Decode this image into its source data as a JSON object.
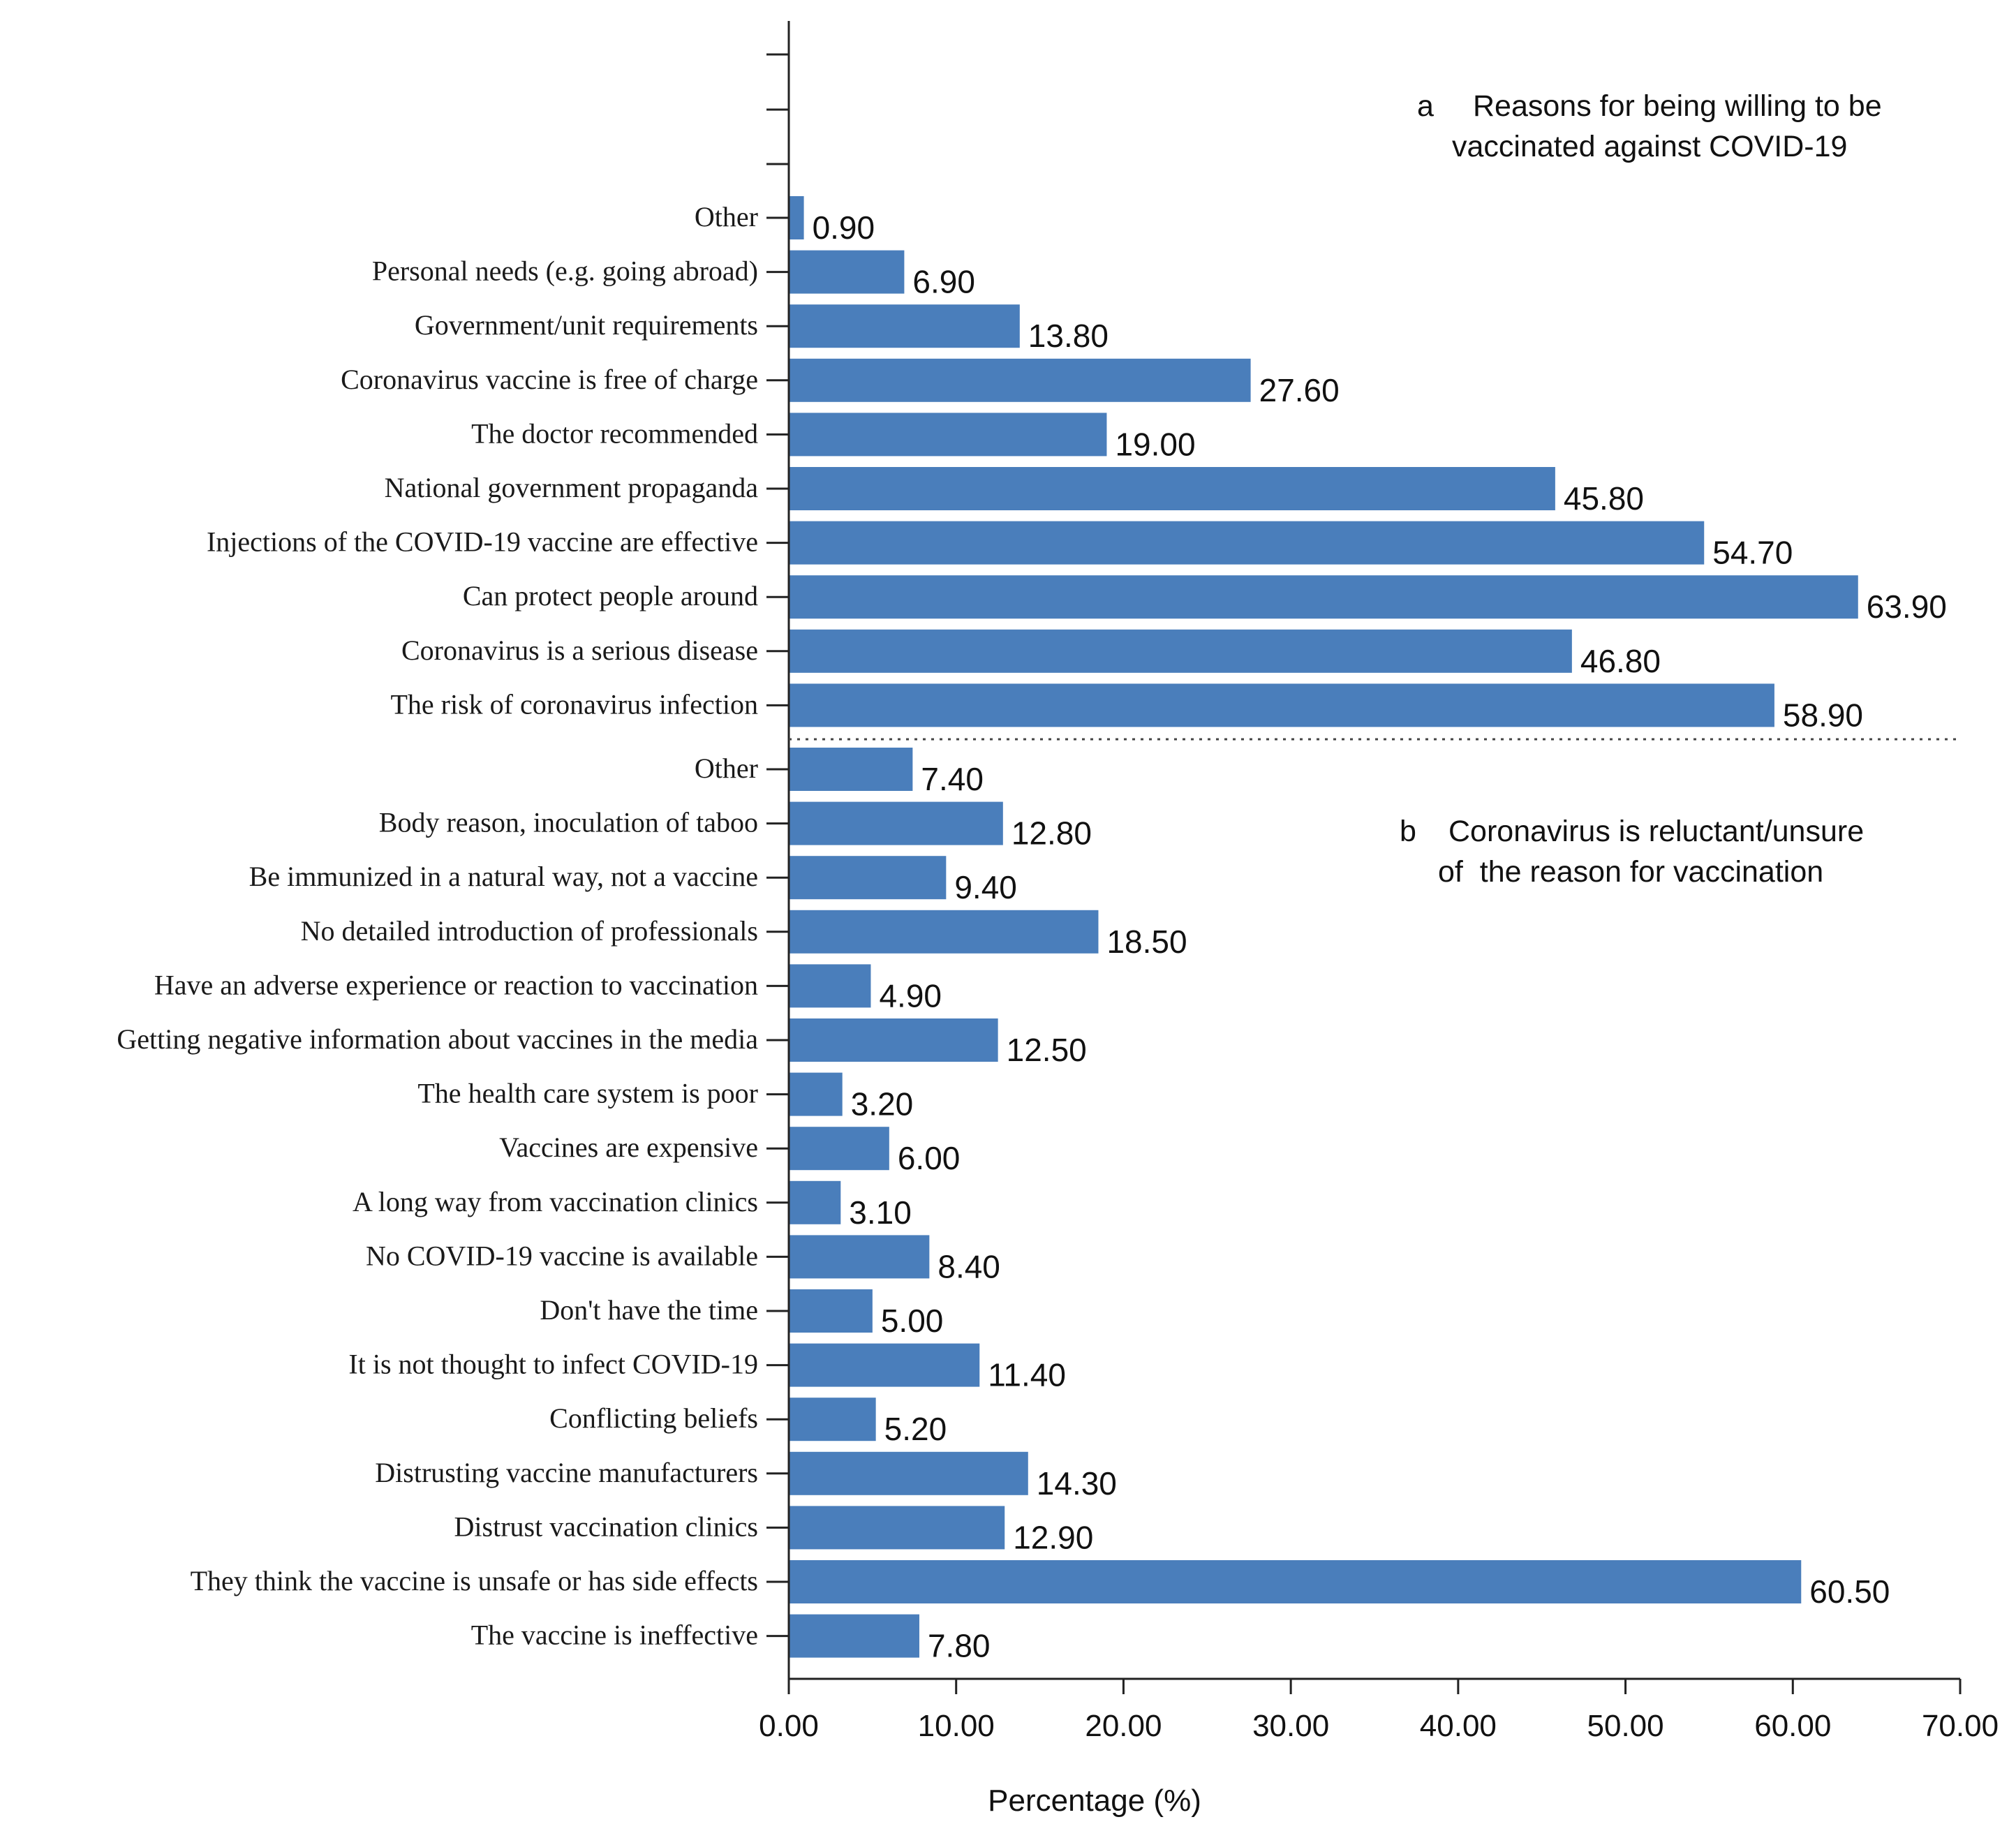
{
  "chart_data": {
    "type": "bar",
    "orientation": "horizontal",
    "bar_color": "#4a7ebb",
    "xlabel": "Percentage (%)",
    "xlim": [
      0,
      70
    ],
    "x_ticks": [
      "0.00",
      "10.00",
      "20.00",
      "30.00",
      "40.00",
      "50.00",
      "60.00",
      "70.00"
    ],
    "x_tick_values": [
      0,
      10,
      20,
      30,
      40,
      50,
      60,
      70
    ],
    "panels": [
      {
        "id": "a",
        "letter": "a",
        "title_lines": [
          "Reasons for being willing to be",
          "vaccinated against COVID-19"
        ],
        "categories": [
          "Other",
          "Personal needs (e.g. going abroad)",
          "Government/unit requirements",
          "Coronavirus vaccine is free of charge",
          "The doctor recommended",
          "National government propaganda",
          "Injections of the COVID-19 vaccine are effective",
          "Can protect people around",
          "Coronavirus is a serious disease",
          "The risk of coronavirus infection"
        ],
        "values": [
          0.9,
          6.9,
          13.8,
          27.6,
          19.0,
          45.8,
          54.7,
          63.9,
          46.8,
          58.9
        ],
        "value_labels": [
          "0.90",
          "6.90",
          "13.80",
          "27.60",
          "19.00",
          "45.80",
          "54.70",
          "63.90",
          "46.80",
          "58.90"
        ]
      },
      {
        "id": "b",
        "letter": "b",
        "title_lines": [
          "Coronavirus is reluctant/unsure",
          "of  the reason for vaccination"
        ],
        "categories": [
          "Other",
          "Body reason, inoculation of taboo",
          "Be immunized in a natural way, not a vaccine",
          "No detailed introduction of professionals",
          "Have an adverse experience or reaction to vaccination",
          "Getting negative information about vaccines in the media",
          "The health care system is poor",
          "Vaccines are expensive",
          "A long way from vaccination clinics",
          "No COVID-19 vaccine is available",
          "Don't have the time",
          "It is not thought to infect COVID-19",
          "Conflicting beliefs",
          "Distrusting vaccine manufacturers",
          "Distrust vaccination clinics",
          "They think the vaccine is unsafe or has side effects",
          "The vaccine is ineffective"
        ],
        "values": [
          7.4,
          12.8,
          9.4,
          18.5,
          4.9,
          12.5,
          3.2,
          6.0,
          3.1,
          8.4,
          5.0,
          11.4,
          5.2,
          14.3,
          12.9,
          60.5,
          7.8
        ],
        "value_labels": [
          "7.40",
          "12.80",
          "9.40",
          "18.50",
          "4.90",
          "12.50",
          "3.20",
          "6.00",
          "3.10",
          "8.40",
          "5.00",
          "11.40",
          "5.20",
          "14.30",
          "12.90",
          "60.50",
          "7.80"
        ]
      }
    ]
  }
}
